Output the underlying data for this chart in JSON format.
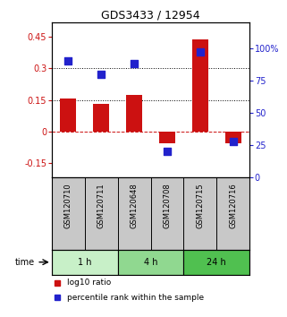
{
  "title": "GDS3433 / 12954",
  "samples": [
    "GSM120710",
    "GSM120711",
    "GSM120648",
    "GSM120708",
    "GSM120715",
    "GSM120716"
  ],
  "groups": [
    {
      "label": "1 h",
      "indices": [
        0,
        1
      ],
      "color": "#c8f0c8"
    },
    {
      "label": "4 h",
      "indices": [
        2,
        3
      ],
      "color": "#90d890"
    },
    {
      "label": "24 h",
      "indices": [
        4,
        5
      ],
      "color": "#50c050"
    }
  ],
  "log10_ratio": [
    0.155,
    0.13,
    0.175,
    -0.055,
    0.44,
    -0.055
  ],
  "percentile_rank": [
    90,
    80,
    88,
    20,
    97,
    28
  ],
  "ylim_left": [
    -0.22,
    0.52
  ],
  "ylim_right": [
    0,
    120
  ],
  "left_ticks": [
    0.45,
    0.3,
    0.15,
    0,
    -0.15
  ],
  "right_ticks": [
    100,
    75,
    50,
    25,
    0
  ],
  "hlines_dotted": [
    0.3,
    0.15
  ],
  "hline_dashed": 0,
  "bar_color": "#cc1111",
  "dot_color": "#2222cc",
  "bar_width": 0.5,
  "dot_size": 28,
  "legend_items": [
    "log10 ratio",
    "percentile rank within the sample"
  ],
  "legend_colors": [
    "#cc1111",
    "#2222cc"
  ],
  "time_label": "time",
  "title_fontsize": 9,
  "tick_fontsize": 7,
  "label_fontsize": 6,
  "group_fontsize": 7,
  "legend_fontsize": 6.5,
  "gsm_label_bg": "#c8c8c8",
  "spine_color": "#000000"
}
